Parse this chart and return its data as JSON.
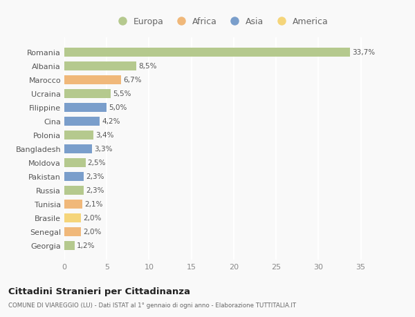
{
  "categories": [
    "Romania",
    "Albania",
    "Marocco",
    "Ucraina",
    "Filippine",
    "Cina",
    "Polonia",
    "Bangladesh",
    "Moldova",
    "Pakistan",
    "Russia",
    "Tunisia",
    "Brasile",
    "Senegal",
    "Georgia"
  ],
  "values": [
    33.7,
    8.5,
    6.7,
    5.5,
    5.0,
    4.2,
    3.4,
    3.3,
    2.5,
    2.3,
    2.3,
    2.1,
    2.0,
    2.0,
    1.2
  ],
  "labels": [
    "33,7%",
    "8,5%",
    "6,7%",
    "5,5%",
    "5,0%",
    "4,2%",
    "3,4%",
    "3,3%",
    "2,5%",
    "2,3%",
    "2,3%",
    "2,1%",
    "2,0%",
    "2,0%",
    "1,2%"
  ],
  "continents": [
    "Europa",
    "Europa",
    "Africa",
    "Europa",
    "Asia",
    "Asia",
    "Europa",
    "Asia",
    "Europa",
    "Asia",
    "Europa",
    "Africa",
    "America",
    "Africa",
    "Europa"
  ],
  "continent_colors": {
    "Europa": "#b5c98e",
    "Africa": "#f0b87a",
    "Asia": "#7a9ecb",
    "America": "#f5d57a"
  },
  "legend_order": [
    "Europa",
    "Africa",
    "Asia",
    "America"
  ],
  "title": "Cittadini Stranieri per Cittadinanza",
  "subtitle": "COMUNE DI VIAREGGIO (LU) - Dati ISTAT al 1° gennaio di ogni anno - Elaborazione TUTTITALIA.IT",
  "xlim": [
    0,
    37
  ],
  "xticks": [
    0,
    5,
    10,
    15,
    20,
    25,
    30,
    35
  ],
  "bg_color": "#f9f9f9",
  "grid_color": "#ffffff",
  "bar_height": 0.65
}
